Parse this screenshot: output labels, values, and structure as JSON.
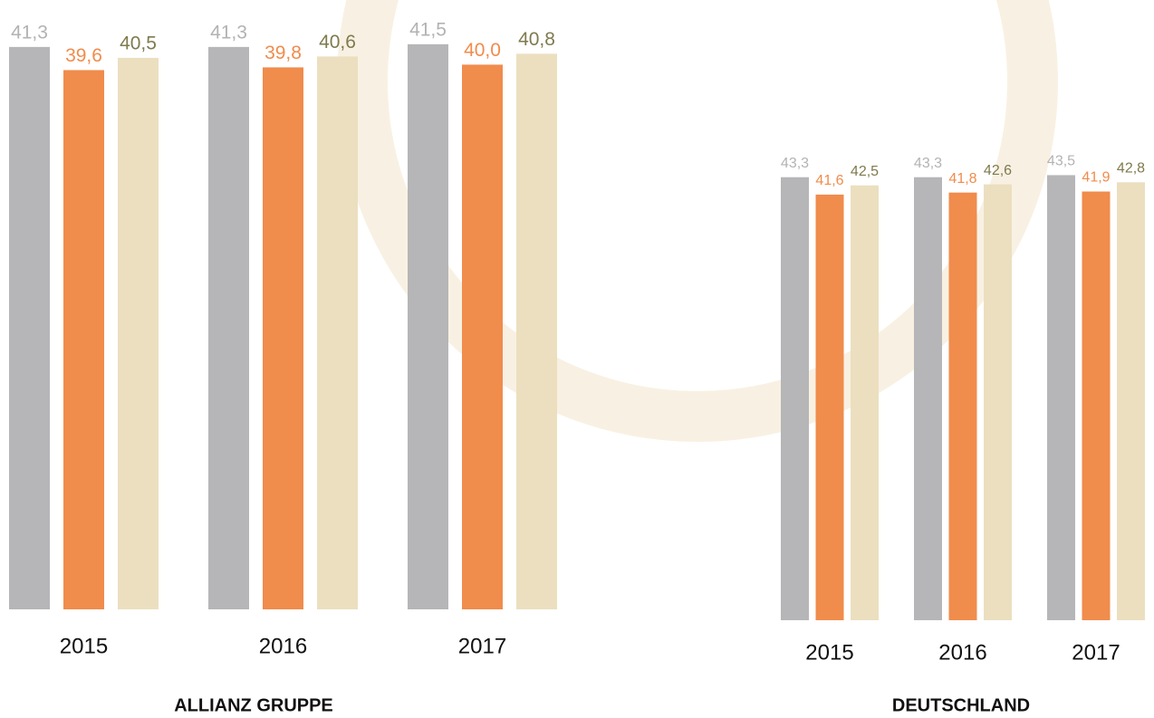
{
  "chart_data": [
    {
      "type": "bar",
      "title": "ALLIANZ GRUPPE",
      "categories": [
        "2015",
        "2016",
        "2017"
      ],
      "series": [
        {
          "color": "#b6b5b7",
          "label_color": "#b3b2b4",
          "values": [
            41.3,
            41.3,
            41.5
          ],
          "value_labels": [
            "41,3",
            "41,3",
            "41,5"
          ]
        },
        {
          "color": "#f08c4c",
          "label_color": "#f08c4c",
          "values": [
            39.6,
            39.8,
            40.0
          ],
          "value_labels": [
            "39,6",
            "39,8",
            "40,0"
          ]
        },
        {
          "color": "#ebdfbf",
          "label_color": "#7f7a4e",
          "values": [
            40.5,
            40.6,
            40.8
          ],
          "value_labels": [
            "40,5",
            "40,6",
            "40,8"
          ]
        }
      ]
    },
    {
      "type": "bar",
      "title": "DEUTSCHLAND",
      "categories": [
        "2015",
        "2016",
        "2017"
      ],
      "series": [
        {
          "color": "#b6b5b7",
          "label_color": "#b3b2b4",
          "values": [
            43.3,
            43.3,
            43.5
          ],
          "value_labels": [
            "43,3",
            "43,3",
            "43,5"
          ]
        },
        {
          "color": "#f08c4c",
          "label_color": "#f08c4c",
          "values": [
            41.6,
            41.8,
            41.9
          ],
          "value_labels": [
            "41,6",
            "41,8",
            "41,9"
          ]
        },
        {
          "color": "#ebdfbf",
          "label_color": "#7f7a4e",
          "values": [
            42.5,
            42.6,
            42.8
          ],
          "value_labels": [
            "42,5",
            "42,6",
            "42,8"
          ]
        }
      ]
    }
  ]
}
